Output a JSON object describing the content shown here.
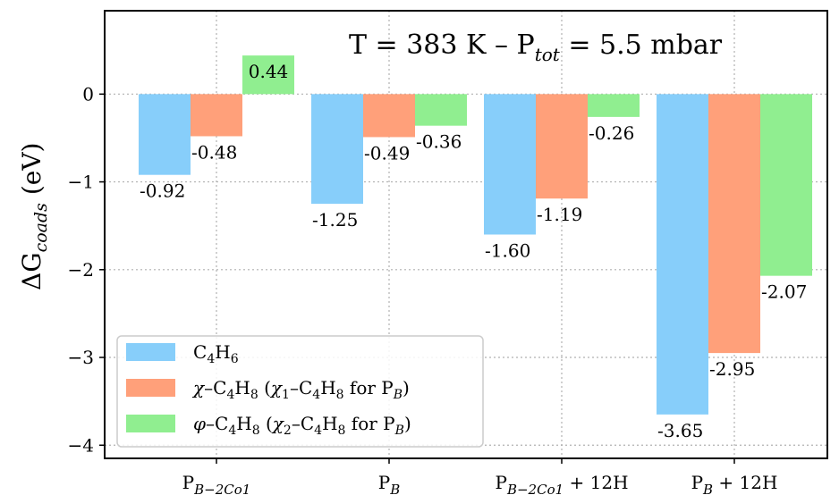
{
  "chart_data": {
    "type": "bar",
    "title": "T = 383 K – P_tot = 5.5 mbar",
    "ylabel": "ΔG_coads (eV)",
    "xlabel": "",
    "ylim": [
      -4.15,
      0.95
    ],
    "yticks": [
      0,
      -1,
      -2,
      -3,
      -4
    ],
    "ytick_labels": [
      "0",
      "−1",
      "−2",
      "−3",
      "−4"
    ],
    "grid": true,
    "legend_position": "lower-left",
    "categories": [
      {
        "base": "P",
        "sub": "B−2Co1",
        "suffix": ""
      },
      {
        "base": "P",
        "sub": "B",
        "suffix": ""
      },
      {
        "base": "P",
        "sub": "B−2Co1",
        "suffix": " + 12H"
      },
      {
        "base": "P",
        "sub": "B",
        "suffix": " + 12H"
      }
    ],
    "series": [
      {
        "name": "C4H6",
        "color": "#87cefa",
        "values": [
          -0.92,
          -1.25,
          -1.6,
          -3.65
        ],
        "labels": [
          "-0.92",
          "-1.25",
          "-1.60",
          "-3.65"
        ]
      },
      {
        "name": "χ–C4H8 (χ1–C4H8 for P_B)",
        "color": "#ffa07a",
        "values": [
          -0.48,
          -0.49,
          -1.19,
          -2.95
        ],
        "labels": [
          "-0.48",
          "-0.49",
          "-1.19",
          "-2.95"
        ]
      },
      {
        "name": "φ–C4H8 (χ2–C4H8 for P_B)",
        "color": "#90ee90",
        "values": [
          0.44,
          -0.36,
          -0.26,
          -2.07
        ],
        "labels": [
          "0.44",
          "-0.36",
          "-0.26",
          "-2.07"
        ]
      }
    ]
  }
}
